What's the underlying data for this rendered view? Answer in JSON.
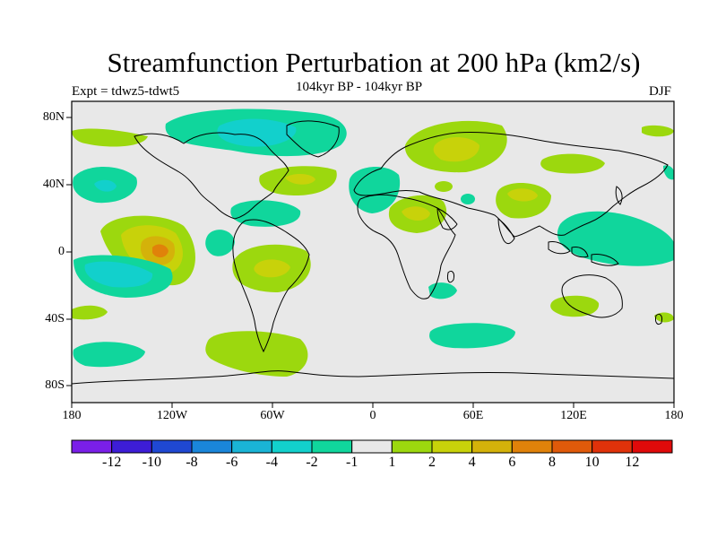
{
  "title": "Streamfunction Perturbation at 200 hPa (km2/s)",
  "left_label": "Expt = tdwz5-tdwt5",
  "center_label": "104kyr BP - 104kyr BP",
  "right_label": "DJF",
  "lat_ticks": [
    "80N",
    "40N",
    "0",
    "40S",
    "80S"
  ],
  "lon_ticks": [
    "180",
    "120W",
    "60W",
    "0",
    "60E",
    "120E",
    "180"
  ],
  "colorbar": {
    "labels": [
      "-12",
      "-10",
      "-8",
      "-6",
      "-4",
      "-2",
      "-1",
      "1",
      "2",
      "4",
      "6",
      "8",
      "10",
      "12"
    ],
    "colors": [
      "#7a1fe8",
      "#3d1dd6",
      "#1f48d2",
      "#1a86da",
      "#1ab4d6",
      "#12d0cc",
      "#10d69c",
      "#e8e8e8",
      "#9cd80e",
      "#c8d20a",
      "#d4b20a",
      "#e0820a",
      "#e05a0a",
      "#e0320a",
      "#e00a0a"
    ]
  },
  "map_colors": {
    "background": "#e8e8e8",
    "teal": "#10d69c",
    "cyan": "#12d0cc",
    "lightblue": "#1ab4d6",
    "green": "#9cd80e",
    "yellow": "#c8d20a",
    "gold": "#d4b20a",
    "orange": "#e0820a"
  }
}
